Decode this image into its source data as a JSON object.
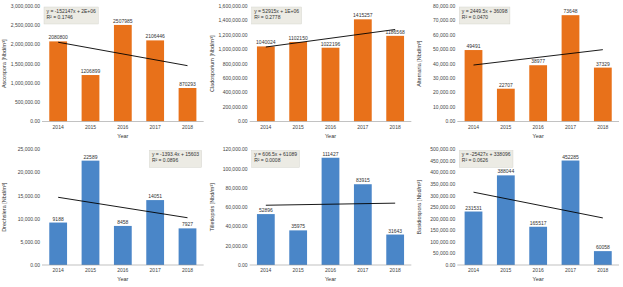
{
  "chart_data": [
    {
      "type": "bar",
      "x_label": "Year",
      "y_label": "Ascospora [Nbd/m³]",
      "categories": [
        "2014",
        "2015",
        "2016",
        "2017",
        "2018"
      ],
      "values": [
        2080800,
        1206899,
        2507985,
        2106446,
        870293
      ],
      "color": "#e8711a",
      "data_labels": true,
      "grid": false,
      "annotations": [
        "y = -152147x + 2E+06",
        "R² = 0.1746"
      ],
      "ylim": [
        0,
        3000000
      ],
      "yticks": [
        {
          "value": 0,
          "label": "0.00"
        },
        {
          "value": 500000,
          "label": "500,000.00"
        },
        {
          "value": 1000000,
          "label": "1,000,000.00"
        },
        {
          "value": 1500000,
          "label": "1,500,000.00"
        },
        {
          "value": 2000000,
          "label": "2,000,000.00"
        },
        {
          "value": 2500000,
          "label": "2,500,000.00"
        },
        {
          "value": 3000000,
          "label": "3,000,000.00"
        }
      ]
    },
    {
      "type": "bar",
      "x_label": "Year",
      "y_label": "Cladosporium [Nbd/m³]",
      "categories": [
        "2014",
        "2015",
        "2016",
        "2017",
        "2018"
      ],
      "values": [
        1040024,
        1102150,
        1022196,
        1415257,
        1186568
      ],
      "color": "#e8711a",
      "data_labels": true,
      "grid": false,
      "annotations": [
        "y = 52915x + 1E+06",
        "R² = 0.2778"
      ],
      "ylim": [
        0,
        1600000
      ],
      "yticks": [
        {
          "value": 0,
          "label": "0.00"
        },
        {
          "value": 200000,
          "label": "200,000.00"
        },
        {
          "value": 400000,
          "label": "400,000.00"
        },
        {
          "value": 600000,
          "label": "600,000.00"
        },
        {
          "value": 800000,
          "label": "800,000.00"
        },
        {
          "value": 1000000,
          "label": "1,000,000.00"
        },
        {
          "value": 1200000,
          "label": "1,200,000.00"
        },
        {
          "value": 1400000,
          "label": "1,400,000.00"
        },
        {
          "value": 1600000,
          "label": "1,600,000.00"
        }
      ]
    },
    {
      "type": "bar",
      "x_label": "Year",
      "y_label": "Alternaria [Nbd/m³]",
      "categories": [
        "2014",
        "2015",
        "2016",
        "2017",
        "2018"
      ],
      "values": [
        49491,
        22707,
        38977,
        73648,
        37329
      ],
      "color": "#e8711a",
      "data_labels": true,
      "grid": false,
      "annotations": [
        "y = 2449.5x + 36098",
        "R² = 0.0470"
      ],
      "ylim": [
        0,
        80000
      ],
      "yticks": [
        {
          "value": 0,
          "label": "0.00"
        },
        {
          "value": 10000,
          "label": "10,000.00"
        },
        {
          "value": 20000,
          "label": "20,000.00"
        },
        {
          "value": 30000,
          "label": "30,000.00"
        },
        {
          "value": 40000,
          "label": "40,000.00"
        },
        {
          "value": 50000,
          "label": "50,000.00"
        },
        {
          "value": 60000,
          "label": "60,000.00"
        },
        {
          "value": 70000,
          "label": "70,000.00"
        },
        {
          "value": 80000,
          "label": "80,000.00"
        }
      ]
    },
    {
      "type": "bar",
      "x_label": "Year",
      "y_label": "Drechslera [Nbd/m³]",
      "categories": [
        "2014",
        "2015",
        "2016",
        "2017",
        "2018"
      ],
      "values": [
        9188,
        22589,
        8458,
        14051,
        7927
      ],
      "color": "#4a86c8",
      "data_labels": true,
      "grid": false,
      "annotations": [
        "y = -1393.4x + 15603",
        "R² = 0.0896"
      ],
      "ylim": [
        0,
        25000
      ],
      "yticks": [
        {
          "value": 0,
          "label": "0.00"
        },
        {
          "value": 5000,
          "label": "5,000.00"
        },
        {
          "value": 10000,
          "label": "10,000.00"
        },
        {
          "value": 15000,
          "label": "15,000.00"
        },
        {
          "value": 20000,
          "label": "20,000.00"
        },
        {
          "value": 25000,
          "label": "25,000.00"
        }
      ]
    },
    {
      "type": "bar",
      "x_label": "Year",
      "y_label": "Tilletiopsis [Nbd/m³]",
      "categories": [
        "2014",
        "2015",
        "2016",
        "2017",
        "2018"
      ],
      "values": [
        52896,
        35975,
        111427,
        83915,
        31643
      ],
      "color": "#4a86c8",
      "data_labels": true,
      "grid": false,
      "annotations": [
        "y = 606.5x + 61089",
        "R² = 0.0008"
      ],
      "ylim": [
        0,
        120000
      ],
      "yticks": [
        {
          "value": 0,
          "label": "0.00"
        },
        {
          "value": 20000,
          "label": "20,000.00"
        },
        {
          "value": 40000,
          "label": "40,000.00"
        },
        {
          "value": 60000,
          "label": "60,000.00"
        },
        {
          "value": 80000,
          "label": "80,000.00"
        },
        {
          "value": 100000,
          "label": "100,000.00"
        },
        {
          "value": 120000,
          "label": "120,000.00"
        }
      ]
    },
    {
      "type": "bar",
      "x_label": "Year",
      "y_label": "Basidiospora [Nbd/m³]",
      "categories": [
        "2014",
        "2015",
        "2016",
        "2017",
        "2018"
      ],
      "values": [
        231531,
        388044,
        165517,
        452285,
        60058
      ],
      "color": "#4a86c8",
      "data_labels": true,
      "grid": false,
      "annotations": [
        "y = -25427x + 338096",
        "R² = 0.0626"
      ],
      "ylim": [
        0,
        500000
      ],
      "yticks": [
        {
          "value": 0,
          "label": "0.00"
        },
        {
          "value": 50000,
          "label": "50,000.00"
        },
        {
          "value": 100000,
          "label": "100,000.00"
        },
        {
          "value": 150000,
          "label": "150,000.00"
        },
        {
          "value": 200000,
          "label": "200,000.00"
        },
        {
          "value": 250000,
          "label": "250,000.00"
        },
        {
          "value": 300000,
          "label": "300,000.00"
        },
        {
          "value": 350000,
          "label": "350,000.00"
        },
        {
          "value": 400000,
          "label": "400,000.00"
        },
        {
          "value": 450000,
          "label": "450,000.00"
        },
        {
          "value": 500000,
          "label": "500,000.00"
        }
      ]
    }
  ]
}
